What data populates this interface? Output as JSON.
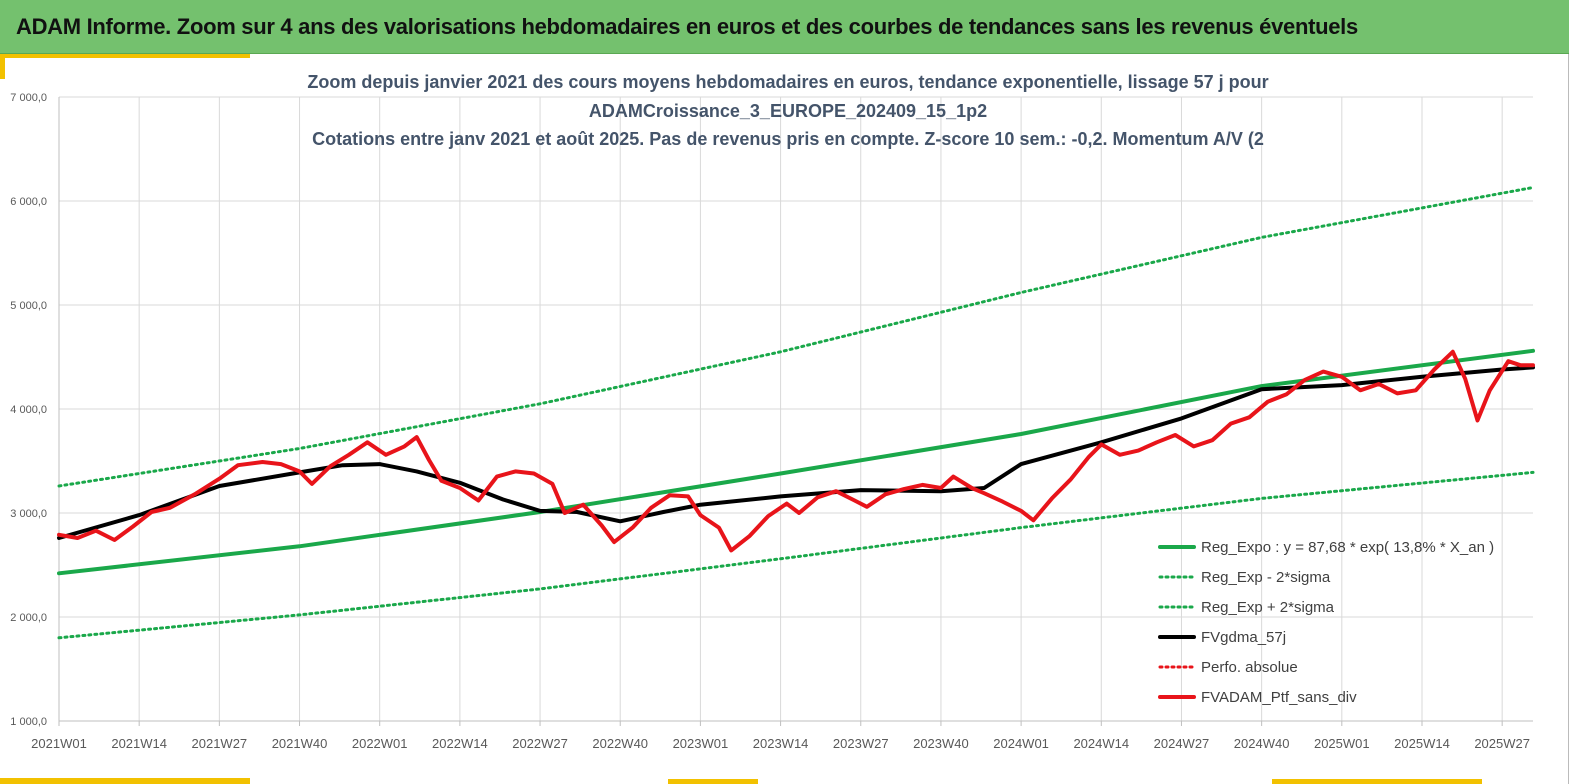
{
  "banner": {
    "title": "ADAM Informe. Zoom sur 4 ans des valorisations hebdomadaires en euros et des courbes de tendances sans les revenus éventuels"
  },
  "colors": {
    "banner": "#74c16e",
    "accent": "#f2c100",
    "trend_green": "#1aa84a",
    "smooth_black": "#000000",
    "portfolio_red": "#e8141a"
  },
  "chart_data": {
    "type": "line",
    "title": [
      "Zoom depuis janvier 2021 des cours moyens hebdomadaires  en euros, tendance exponentielle, lissage 57 j pour",
      "ADAMCroissance_3_EUROPE_202409_15_1p2",
      "Cotations entre janv 2021 et août 2025. Pas de revenus pris en compte. Z-score 10 sem.: -0,2. Momentum  A/V (2"
    ],
    "ylim": [
      1000,
      7000
    ],
    "y_ticks": [
      1000,
      2000,
      3000,
      4000,
      5000,
      6000,
      7000
    ],
    "y_tick_labels": [
      "1 000,0",
      "2 000,0",
      "3 000,0",
      "4 000,0",
      "5 000,0",
      "6 000,0",
      "7 000,0"
    ],
    "x_ticks": [
      "2021W01",
      "2021W14",
      "2021W27",
      "2021W40",
      "2022W01",
      "2022W14",
      "2022W27",
      "2022W40",
      "2023W01",
      "2023W14",
      "2023W27",
      "2023W40",
      "2024W01",
      "2024W14",
      "2024W27",
      "2024W40",
      "2025W01",
      "2025W14",
      "2025W27"
    ],
    "grid": true,
    "legend_position": "bottom-right",
    "series": [
      {
        "name": "Reg_Expo : y = 87,68 * exp( 13,8% *  X_an )",
        "style": "solid-thick",
        "color": "#1aa84a",
        "points": [
          [
            0,
            2420
          ],
          [
            39,
            2680
          ],
          [
            78,
            3010
          ],
          [
            117,
            3380
          ],
          [
            156,
            3760
          ],
          [
            195,
            4220
          ],
          [
            239,
            4560
          ]
        ]
      },
      {
        "name": "Reg_Exp - 2*sigma",
        "style": "dotted",
        "color": "#1aa84a",
        "points": [
          [
            0,
            1800
          ],
          [
            39,
            2020
          ],
          [
            78,
            2270
          ],
          [
            117,
            2560
          ],
          [
            156,
            2860
          ],
          [
            195,
            3140
          ],
          [
            239,
            3390
          ]
        ]
      },
      {
        "name": "Reg_Exp + 2*sigma",
        "style": "dotted",
        "color": "#1aa84a",
        "points": [
          [
            0,
            3260
          ],
          [
            39,
            3620
          ],
          [
            78,
            4050
          ],
          [
            117,
            4550
          ],
          [
            156,
            5120
          ],
          [
            195,
            5650
          ],
          [
            239,
            6130
          ]
        ]
      },
      {
        "name": "FVgdma_57j",
        "style": "solid-thick",
        "color": "#000000",
        "points": [
          [
            0,
            2760
          ],
          [
            13,
            2980
          ],
          [
            26,
            3260
          ],
          [
            39,
            3390
          ],
          [
            46,
            3460
          ],
          [
            52,
            3470
          ],
          [
            58,
            3400
          ],
          [
            65,
            3290
          ],
          [
            72,
            3130
          ],
          [
            78,
            3020
          ],
          [
            84,
            3010
          ],
          [
            91,
            2920
          ],
          [
            98,
            3010
          ],
          [
            104,
            3080
          ],
          [
            117,
            3160
          ],
          [
            130,
            3220
          ],
          [
            143,
            3210
          ],
          [
            150,
            3240
          ],
          [
            156,
            3470
          ],
          [
            169,
            3680
          ],
          [
            182,
            3910
          ],
          [
            195,
            4190
          ],
          [
            208,
            4230
          ],
          [
            221,
            4310
          ],
          [
            234,
            4380
          ],
          [
            239,
            4400
          ]
        ]
      },
      {
        "name": "Perfo. absolue",
        "style": "dotted",
        "color": "#e8141a",
        "points": []
      },
      {
        "name": "FVADAM_Ptf_sans_div",
        "style": "solid-thick",
        "color": "#e8141a",
        "points": [
          [
            0,
            2790
          ],
          [
            3,
            2760
          ],
          [
            6,
            2830
          ],
          [
            9,
            2740
          ],
          [
            12,
            2870
          ],
          [
            15,
            3010
          ],
          [
            18,
            3050
          ],
          [
            22,
            3180
          ],
          [
            26,
            3330
          ],
          [
            29,
            3460
          ],
          [
            33,
            3490
          ],
          [
            36,
            3470
          ],
          [
            39,
            3400
          ],
          [
            41,
            3280
          ],
          [
            44,
            3450
          ],
          [
            47,
            3560
          ],
          [
            50,
            3680
          ],
          [
            53,
            3560
          ],
          [
            56,
            3640
          ],
          [
            58,
            3730
          ],
          [
            60,
            3510
          ],
          [
            62,
            3310
          ],
          [
            65,
            3240
          ],
          [
            68,
            3120
          ],
          [
            71,
            3350
          ],
          [
            74,
            3400
          ],
          [
            77,
            3380
          ],
          [
            80,
            3280
          ],
          [
            82,
            3000
          ],
          [
            85,
            3080
          ],
          [
            88,
            2880
          ],
          [
            90,
            2720
          ],
          [
            93,
            2860
          ],
          [
            96,
            3050
          ],
          [
            99,
            3170
          ],
          [
            102,
            3160
          ],
          [
            104,
            2980
          ],
          [
            107,
            2860
          ],
          [
            109,
            2640
          ],
          [
            112,
            2780
          ],
          [
            115,
            2970
          ],
          [
            118,
            3090
          ],
          [
            120,
            3000
          ],
          [
            123,
            3150
          ],
          [
            126,
            3210
          ],
          [
            129,
            3120
          ],
          [
            131,
            3060
          ],
          [
            134,
            3180
          ],
          [
            137,
            3230
          ],
          [
            140,
            3270
          ],
          [
            143,
            3240
          ],
          [
            145,
            3350
          ],
          [
            148,
            3240
          ],
          [
            150,
            3190
          ],
          [
            153,
            3110
          ],
          [
            156,
            3020
          ],
          [
            158,
            2930
          ],
          [
            161,
            3140
          ],
          [
            164,
            3320
          ],
          [
            167,
            3540
          ],
          [
            169,
            3660
          ],
          [
            172,
            3560
          ],
          [
            175,
            3600
          ],
          [
            178,
            3680
          ],
          [
            181,
            3750
          ],
          [
            184,
            3640
          ],
          [
            187,
            3700
          ],
          [
            190,
            3860
          ],
          [
            193,
            3920
          ],
          [
            196,
            4070
          ],
          [
            199,
            4140
          ],
          [
            202,
            4280
          ],
          [
            205,
            4360
          ],
          [
            208,
            4310
          ],
          [
            211,
            4180
          ],
          [
            214,
            4240
          ],
          [
            217,
            4150
          ],
          [
            220,
            4180
          ],
          [
            223,
            4380
          ],
          [
            226,
            4550
          ],
          [
            228,
            4290
          ],
          [
            230,
            3890
          ],
          [
            232,
            4180
          ],
          [
            235,
            4460
          ],
          [
            237,
            4420
          ],
          [
            239,
            4420
          ]
        ]
      }
    ]
  }
}
